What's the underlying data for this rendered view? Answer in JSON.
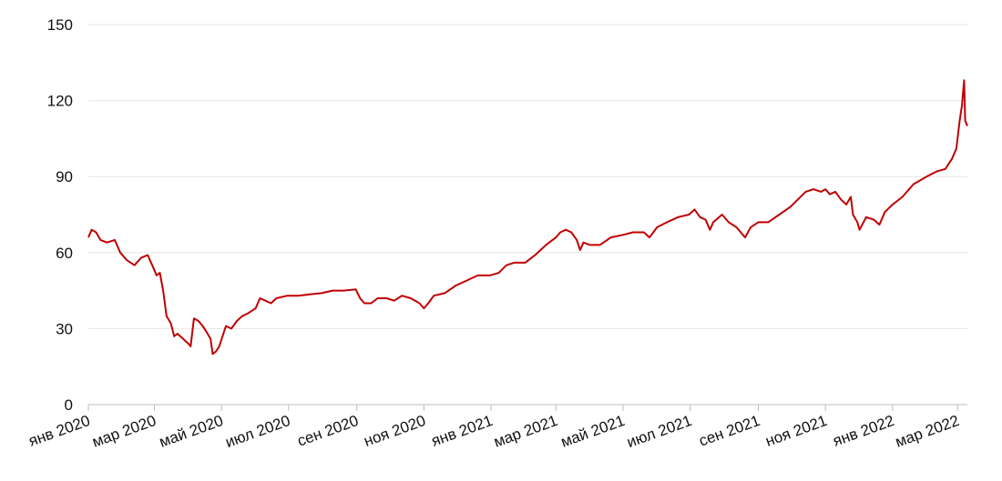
{
  "chart_data": {
    "type": "line",
    "title": "",
    "xlabel": "",
    "ylabel": "",
    "ylim": [
      0,
      150
    ],
    "yticks": [
      0,
      30,
      60,
      90,
      120,
      150
    ],
    "xlim": [
      "2020-01-01",
      "2022-03-10"
    ],
    "xtick_labels": [
      {
        "date": "2020-01-01",
        "label": "янв 2020"
      },
      {
        "date": "2020-03-01",
        "label": "мар 2020"
      },
      {
        "date": "2020-05-01",
        "label": "май 2020"
      },
      {
        "date": "2020-07-01",
        "label": "июл 2020"
      },
      {
        "date": "2020-09-01",
        "label": "сен 2020"
      },
      {
        "date": "2020-11-01",
        "label": "ноя 2020"
      },
      {
        "date": "2021-01-01",
        "label": "янв 2021"
      },
      {
        "date": "2021-03-01",
        "label": "мар 2021"
      },
      {
        "date": "2021-05-01",
        "label": "май 2021"
      },
      {
        "date": "2021-07-01",
        "label": "июл 2021"
      },
      {
        "date": "2021-09-01",
        "label": "сен 2021"
      },
      {
        "date": "2021-11-01",
        "label": "ноя 2021"
      },
      {
        "date": "2022-01-01",
        "label": "янв 2022"
      },
      {
        "date": "2022-03-01",
        "label": "мар 2022"
      }
    ],
    "grid": true,
    "legend": false,
    "series": [
      {
        "color": "#c00000",
        "points": [
          [
            "2020-01-01",
            66
          ],
          [
            "2020-01-04",
            69
          ],
          [
            "2020-01-08",
            68
          ],
          [
            "2020-01-12",
            65
          ],
          [
            "2020-01-18",
            64
          ],
          [
            "2020-01-25",
            65
          ],
          [
            "2020-01-30",
            60
          ],
          [
            "2020-02-05",
            57
          ],
          [
            "2020-02-12",
            55
          ],
          [
            "2020-02-18",
            58
          ],
          [
            "2020-02-24",
            59
          ],
          [
            "2020-02-28",
            55
          ],
          [
            "2020-03-03",
            51
          ],
          [
            "2020-03-06",
            52
          ],
          [
            "2020-03-09",
            45
          ],
          [
            "2020-03-12",
            35
          ],
          [
            "2020-03-16",
            32
          ],
          [
            "2020-03-19",
            27
          ],
          [
            "2020-03-22",
            28
          ],
          [
            "2020-03-27",
            26
          ],
          [
            "2020-04-01",
            24
          ],
          [
            "2020-04-03",
            23
          ],
          [
            "2020-04-06",
            34
          ],
          [
            "2020-04-10",
            33
          ],
          [
            "2020-04-14",
            31
          ],
          [
            "2020-04-17",
            29
          ],
          [
            "2020-04-21",
            26
          ],
          [
            "2020-04-23",
            20
          ],
          [
            "2020-04-26",
            21
          ],
          [
            "2020-04-29",
            23
          ],
          [
            "2020-05-02",
            27
          ],
          [
            "2020-05-05",
            31
          ],
          [
            "2020-05-10",
            30
          ],
          [
            "2020-05-15",
            33
          ],
          [
            "2020-05-20",
            35
          ],
          [
            "2020-05-25",
            36
          ],
          [
            "2020-06-01",
            38
          ],
          [
            "2020-06-05",
            42
          ],
          [
            "2020-06-10",
            41
          ],
          [
            "2020-06-15",
            40
          ],
          [
            "2020-06-20",
            42
          ],
          [
            "2020-06-30",
            43
          ],
          [
            "2020-07-10",
            43
          ],
          [
            "2020-07-20",
            43.5
          ],
          [
            "2020-07-31",
            44
          ],
          [
            "2020-08-10",
            45
          ],
          [
            "2020-08-20",
            45
          ],
          [
            "2020-08-31",
            45.5
          ],
          [
            "2020-09-04",
            42
          ],
          [
            "2020-09-08",
            40
          ],
          [
            "2020-09-14",
            40
          ],
          [
            "2020-09-20",
            42
          ],
          [
            "2020-09-28",
            42
          ],
          [
            "2020-10-05",
            41
          ],
          [
            "2020-10-12",
            43
          ],
          [
            "2020-10-20",
            42
          ],
          [
            "2020-10-28",
            40
          ],
          [
            "2020-11-01",
            38
          ],
          [
            "2020-11-05",
            40
          ],
          [
            "2020-11-10",
            43
          ],
          [
            "2020-11-20",
            44
          ],
          [
            "2020-11-30",
            47
          ],
          [
            "2020-12-10",
            49
          ],
          [
            "2020-12-20",
            51
          ],
          [
            "2020-12-31",
            51
          ],
          [
            "2021-01-08",
            52
          ],
          [
            "2021-01-15",
            55
          ],
          [
            "2021-01-22",
            56
          ],
          [
            "2021-02-01",
            56
          ],
          [
            "2021-02-10",
            59
          ],
          [
            "2021-02-20",
            63
          ],
          [
            "2021-03-01",
            66
          ],
          [
            "2021-03-05",
            68
          ],
          [
            "2021-03-10",
            69
          ],
          [
            "2021-03-15",
            68
          ],
          [
            "2021-03-20",
            65
          ],
          [
            "2021-03-23",
            61
          ],
          [
            "2021-03-26",
            64
          ],
          [
            "2021-04-01",
            63
          ],
          [
            "2021-04-10",
            63
          ],
          [
            "2021-04-20",
            66
          ],
          [
            "2021-05-01",
            67
          ],
          [
            "2021-05-10",
            68
          ],
          [
            "2021-05-20",
            68
          ],
          [
            "2021-05-25",
            66
          ],
          [
            "2021-06-01",
            70
          ],
          [
            "2021-06-10",
            72
          ],
          [
            "2021-06-20",
            74
          ],
          [
            "2021-06-30",
            75
          ],
          [
            "2021-07-05",
            77
          ],
          [
            "2021-07-10",
            74
          ],
          [
            "2021-07-15",
            73
          ],
          [
            "2021-07-19",
            69
          ],
          [
            "2021-07-22",
            72
          ],
          [
            "2021-07-30",
            75
          ],
          [
            "2021-08-05",
            72
          ],
          [
            "2021-08-12",
            70
          ],
          [
            "2021-08-20",
            66
          ],
          [
            "2021-08-25",
            70
          ],
          [
            "2021-09-01",
            72
          ],
          [
            "2021-09-10",
            72
          ],
          [
            "2021-09-20",
            75
          ],
          [
            "2021-09-30",
            78
          ],
          [
            "2021-10-07",
            81
          ],
          [
            "2021-10-14",
            84
          ],
          [
            "2021-10-21",
            85
          ],
          [
            "2021-10-28",
            84
          ],
          [
            "2021-11-01",
            85
          ],
          [
            "2021-11-05",
            83
          ],
          [
            "2021-11-10",
            84
          ],
          [
            "2021-11-15",
            81
          ],
          [
            "2021-11-20",
            79
          ],
          [
            "2021-11-24",
            82
          ],
          [
            "2021-11-26",
            75
          ],
          [
            "2021-11-30",
            72
          ],
          [
            "2021-12-02",
            69
          ],
          [
            "2021-12-08",
            74
          ],
          [
            "2021-12-15",
            73
          ],
          [
            "2021-12-20",
            71
          ],
          [
            "2021-12-25",
            76
          ],
          [
            "2022-01-01",
            79
          ],
          [
            "2022-01-10",
            82
          ],
          [
            "2022-01-20",
            87
          ],
          [
            "2022-02-01",
            90
          ],
          [
            "2022-02-10",
            92
          ],
          [
            "2022-02-18",
            93
          ],
          [
            "2022-02-24",
            97
          ],
          [
            "2022-02-28",
            101
          ],
          [
            "2022-03-03",
            112
          ],
          [
            "2022-03-05",
            118
          ],
          [
            "2022-03-07",
            128
          ],
          [
            "2022-03-08",
            112
          ],
          [
            "2022-03-09",
            111
          ],
          [
            "2022-03-10",
            110
          ]
        ]
      }
    ]
  }
}
